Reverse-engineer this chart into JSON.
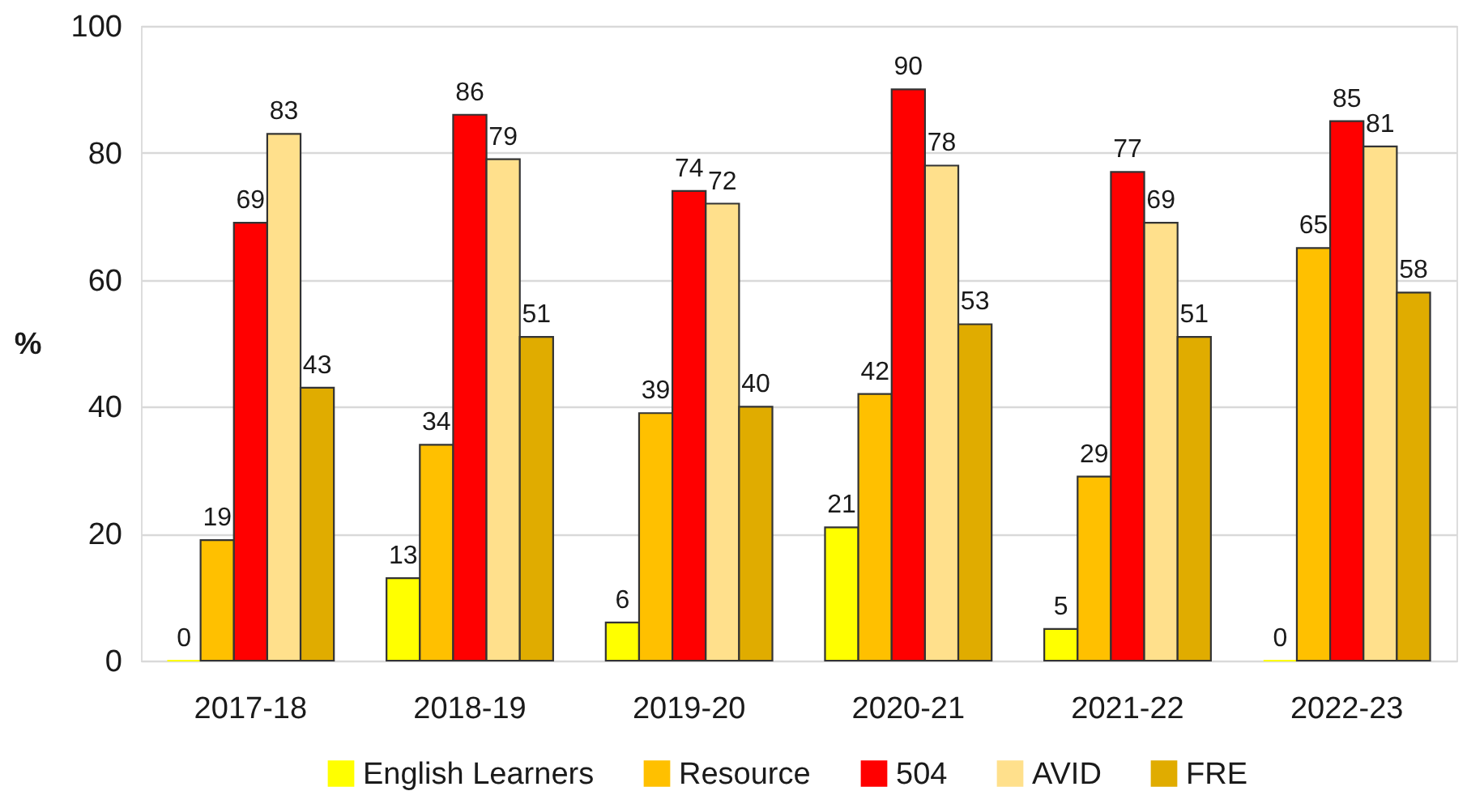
{
  "chart_data": {
    "type": "bar",
    "ylabel": "%",
    "categories": [
      "2017-18",
      "2018-19",
      "2019-20",
      "2020-21",
      "2021-22",
      "2022-23"
    ],
    "series": [
      {
        "name": "English Learners",
        "color": "#ffff00",
        "values": [
          0,
          13,
          6,
          21,
          5,
          0
        ]
      },
      {
        "name": "Resource",
        "color": "#ffc000",
        "values": [
          19,
          34,
          39,
          42,
          29,
          65
        ]
      },
      {
        "name": "504",
        "color": "#ff0000",
        "values": [
          69,
          86,
          74,
          90,
          77,
          85
        ]
      },
      {
        "name": "AVID",
        "color": "#ffe08c",
        "values": [
          83,
          79,
          72,
          78,
          69,
          81
        ]
      },
      {
        "name": "FRE",
        "color": "#e0ac00",
        "values": [
          43,
          51,
          40,
          53,
          51,
          58
        ]
      }
    ],
    "ylim": [
      0,
      100
    ],
    "yticks": [
      0,
      20,
      40,
      60,
      80,
      100
    ],
    "grid": "y",
    "legend": "bottom",
    "data_labels": true
  }
}
